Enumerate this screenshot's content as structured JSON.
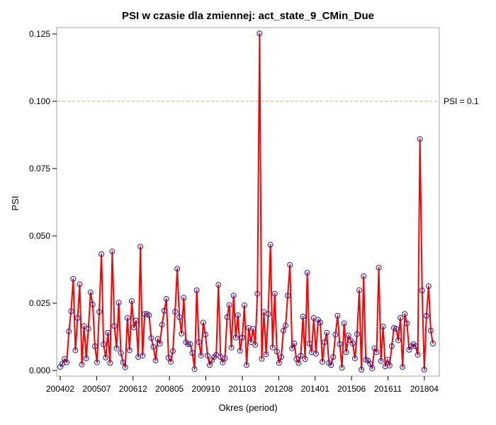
{
  "chart_data": {
    "type": "line",
    "title": "PSI w czasie dla zmiennej: act_state_9_CMin_Due",
    "xlabel": "Okres (period)",
    "ylabel": "PSI",
    "ylim": [
      0,
      0.125
    ],
    "yticks": [
      "0.000",
      "0.025",
      "0.050",
      "0.075",
      "0.100",
      "0.125"
    ],
    "xticks": [
      "200402",
      "200507",
      "200612",
      "200805",
      "200910",
      "201103",
      "201208",
      "201401",
      "201506",
      "201611",
      "201804"
    ],
    "reference_line": {
      "value": 0.1,
      "label": "PSI = 0.1",
      "color": "#f0a050",
      "style": "dashed"
    },
    "series": [
      {
        "line_color": "#ff0000",
        "marker_color": "#2020a0",
        "marker": "circle",
        "x_start": "200402",
        "x_end": "201808",
        "values": [
          0.0013,
          0.0025,
          0.0043,
          0.003,
          0.0145,
          0.022,
          0.034,
          0.0075,
          0.0195,
          0.032,
          0.0022,
          0.0165,
          0.0045,
          0.0155,
          0.029,
          0.0245,
          0.009,
          0.003,
          0.0218,
          0.0432,
          0.0097,
          0.0048,
          0.014,
          0.0028,
          0.0442,
          0.0165,
          0.0082,
          0.0252,
          0.0065,
          0.003,
          0.0012,
          0.0195,
          0.0075,
          0.0258,
          0.016,
          0.0185,
          0.005,
          0.046,
          0.0055,
          0.021,
          0.021,
          0.0205,
          0.012,
          0.0088,
          0.0037,
          0.0117,
          0.01,
          0.017,
          0.0222,
          0.0266,
          0.0047,
          0.0032,
          0.0072,
          0.0218,
          0.0378,
          0.0198,
          0.0137,
          0.027,
          0.0105,
          0.0098,
          0.0098,
          0.0065,
          0.0005,
          0.0298,
          0.0105,
          0.0055,
          0.0178,
          0.0133,
          0.0055,
          0.002,
          0.0038,
          0.005,
          0.0058,
          0.0318,
          0.005,
          0.003,
          0.0045,
          0.0198,
          0.0243,
          0.0085,
          0.0278,
          0.0122,
          0.0205,
          0.0073,
          0.0122,
          0.0242,
          0.002,
          0.0158,
          0.0105,
          0.0155,
          0.0095,
          0.0285,
          0.1252,
          0.0043,
          0.0217,
          0.006,
          0.021,
          0.0467,
          0.0085,
          0.0285,
          0.007,
          0.0028,
          0.005,
          0.0148,
          0.0167,
          0.0278,
          0.0392,
          0.0082,
          0.01,
          0.0043,
          0.0028,
          0.0055,
          0.02,
          0.0042,
          0.0363,
          0.01,
          0.0068,
          0.0195,
          0.0062,
          0.0188,
          0.0178,
          0.0032,
          0.0105,
          0.014,
          0.0028,
          0.002,
          0.005,
          0.0133,
          0.0203,
          0.0098,
          0.001,
          0.0175,
          0.0068,
          0.013,
          0.0112,
          0.01,
          0.0045,
          0.0135,
          0.0298,
          0.0003,
          0.035,
          0.004,
          0.0037,
          0.0025,
          0.0008,
          0.0082,
          0.0068,
          0.0382,
          0.0035,
          0.0163,
          0.0015,
          0.004,
          0.0018,
          0.009,
          0.0158,
          0.0155,
          0.0112,
          0.0195,
          0.0013,
          0.021,
          0.0175,
          0.0077,
          0.009,
          0.0098,
          0.009,
          0.0058,
          0.086,
          0.0297,
          0.0003,
          0.0203,
          0.0313,
          0.0148,
          0.01
        ]
      }
    ]
  }
}
